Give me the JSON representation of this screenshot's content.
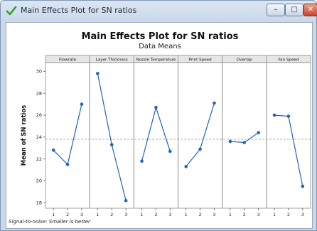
{
  "window": {
    "title": "Main Effects Plot for SN ratios",
    "minimize_glyph": "–",
    "maximize_glyph": "□",
    "close_glyph": "✕",
    "icon": "check-mark-icon"
  },
  "colors": {
    "series": "#1f66b5",
    "reference_line": "#a0a0a0",
    "panel_header_bg": "#e6e6e6",
    "app_icon": "#2aa12a"
  },
  "footnote": "Signal-to-noise: Smaller is better",
  "chart_data": {
    "type": "line",
    "title": "Main Effects Plot for SN ratios",
    "subtitle": "Data Means",
    "ylabel": "Mean of SN ratios",
    "xlabel": "",
    "ylim": [
      17.5,
      30.8
    ],
    "yticks": [
      18,
      20,
      22,
      24,
      26,
      28,
      30
    ],
    "x_levels": [
      "1",
      "2",
      "3"
    ],
    "reference_mean": 23.8,
    "grid": false,
    "panels": [
      {
        "name": "Flowrate",
        "values": [
          22.8,
          21.5,
          27.0
        ]
      },
      {
        "name": "Layer Thickness",
        "values": [
          29.8,
          23.3,
          18.2
        ]
      },
      {
        "name": "Nozzle Temperature",
        "values": [
          21.8,
          26.7,
          22.7
        ]
      },
      {
        "name": "Print Speed",
        "values": [
          21.3,
          22.9,
          27.1
        ]
      },
      {
        "name": "Overlap",
        "values": [
          23.6,
          23.5,
          24.4
        ]
      },
      {
        "name": "Fan Speed",
        "values": [
          26.0,
          25.9,
          19.5
        ]
      }
    ]
  }
}
